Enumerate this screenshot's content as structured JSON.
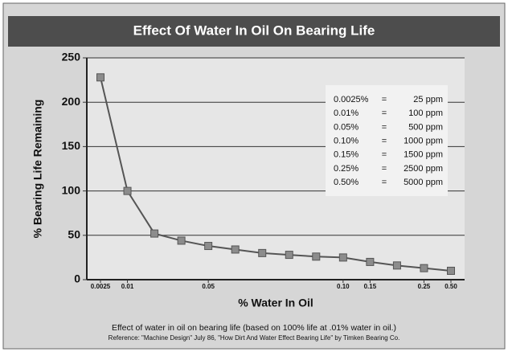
{
  "chart_data": {
    "type": "line",
    "title": "Effect Of Water In Oil On Bearing Life",
    "ylabel": "% Bearing Life Remaining",
    "xlabel": "% Water In Oil",
    "categories": [
      "0.0025",
      "0.01",
      null,
      null,
      "0.05",
      null,
      null,
      null,
      null,
      "0.10",
      "0.15",
      null,
      "0.25",
      "0.50"
    ],
    "values": [
      228,
      100,
      52,
      44,
      38,
      34,
      30,
      28,
      26,
      25,
      20,
      16,
      13,
      10
    ],
    "color": "#555555",
    "marker_color": "#8c8c8c",
    "ylim": [
      0,
      250
    ],
    "yticks": [
      0,
      50,
      100,
      150,
      200,
      250
    ],
    "grid": true,
    "conversion_table": [
      [
        "0.0025%",
        "=",
        "25 ppm"
      ],
      [
        "0.01%",
        "=",
        "100 ppm"
      ],
      [
        "0.05%",
        "=",
        "500 ppm"
      ],
      [
        "0.10%",
        "=",
        "1000 ppm"
      ],
      [
        "0.15%",
        "=",
        "1500 ppm"
      ],
      [
        "0.25%",
        "=",
        "2500 ppm"
      ],
      [
        "0.50%",
        "=",
        "5000 ppm"
      ]
    ],
    "caption": "Effect of water in oil on bearing life (based on 100% life at .01% water in oil.)",
    "reference": "Reference: \"Machine Design\" July 86, \"How Dirt And Water Effect Bearing Life\" by Timken Bearing Co."
  }
}
